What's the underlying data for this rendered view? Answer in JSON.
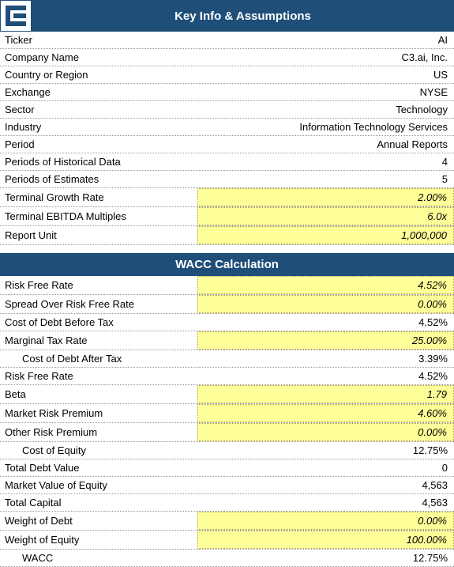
{
  "header1_title": "Key Info & Assumptions",
  "header2_title": "WACC Calculation",
  "colors": {
    "header_bg": "#1f4e79",
    "header_fg": "#ffffff",
    "highlight_bg": "#ffff99",
    "border_dotted": "#999999"
  },
  "key_info": [
    {
      "label": "Ticker",
      "value": "AI",
      "highlight": false
    },
    {
      "label": "Company Name",
      "value": "C3.ai, Inc.",
      "highlight": false
    },
    {
      "label": "Country or Region",
      "value": "US",
      "highlight": false
    },
    {
      "label": "Exchange",
      "value": "NYSE",
      "highlight": false
    },
    {
      "label": "Sector",
      "value": "Technology",
      "highlight": false
    },
    {
      "label": "Industry",
      "value": "Information Technology Services",
      "highlight": false
    },
    {
      "label": "Period",
      "value": "Annual Reports",
      "highlight": false
    },
    {
      "label": "Periods of Historical Data",
      "value": "4",
      "highlight": false
    },
    {
      "label": "Periods of Estimates",
      "value": "5",
      "highlight": false
    },
    {
      "label": "Terminal Growth Rate",
      "value": "2.00%",
      "highlight": true
    },
    {
      "label": "Terminal EBITDA Multiples",
      "value": "6.0x",
      "highlight": true
    },
    {
      "label": "Report Unit",
      "value": "1,000,000",
      "highlight": true
    }
  ],
  "wacc": [
    {
      "label": "Risk Free Rate",
      "value": "4.52%",
      "highlight": true,
      "indent": false
    },
    {
      "label": "Spread Over Risk Free Rate",
      "value": "0.00%",
      "highlight": true,
      "indent": false
    },
    {
      "label": "Cost of Debt Before Tax",
      "value": "4.52%",
      "highlight": false,
      "indent": false
    },
    {
      "label": "Marginal Tax Rate",
      "value": "25.00%",
      "highlight": true,
      "indent": false
    },
    {
      "label": "Cost of Debt After Tax",
      "value": "3.39%",
      "highlight": false,
      "indent": true
    },
    {
      "label": "Risk Free Rate",
      "value": "4.52%",
      "highlight": false,
      "indent": false
    },
    {
      "label": "Beta",
      "value": "1.79",
      "highlight": true,
      "indent": false
    },
    {
      "label": "Market Risk Premium",
      "value": "4.60%",
      "highlight": true,
      "indent": false
    },
    {
      "label": "Other Risk Premium",
      "value": "0.00%",
      "highlight": true,
      "indent": false
    },
    {
      "label": "Cost of Equity",
      "value": "12.75%",
      "highlight": false,
      "indent": true
    },
    {
      "label": "Total Debt Value",
      "value": "0",
      "highlight": false,
      "indent": false
    },
    {
      "label": "Market Value of Equity",
      "value": "4,563",
      "highlight": false,
      "indent": false
    },
    {
      "label": "Total Capital",
      "value": "4,563",
      "highlight": false,
      "indent": false
    },
    {
      "label": "Weight of Debt",
      "value": "0.00%",
      "highlight": true,
      "indent": false
    },
    {
      "label": "Weight of Equity",
      "value": "100.00%",
      "highlight": true,
      "indent": false
    },
    {
      "label": "WACC",
      "value": "12.75%",
      "highlight": false,
      "indent": true
    }
  ]
}
